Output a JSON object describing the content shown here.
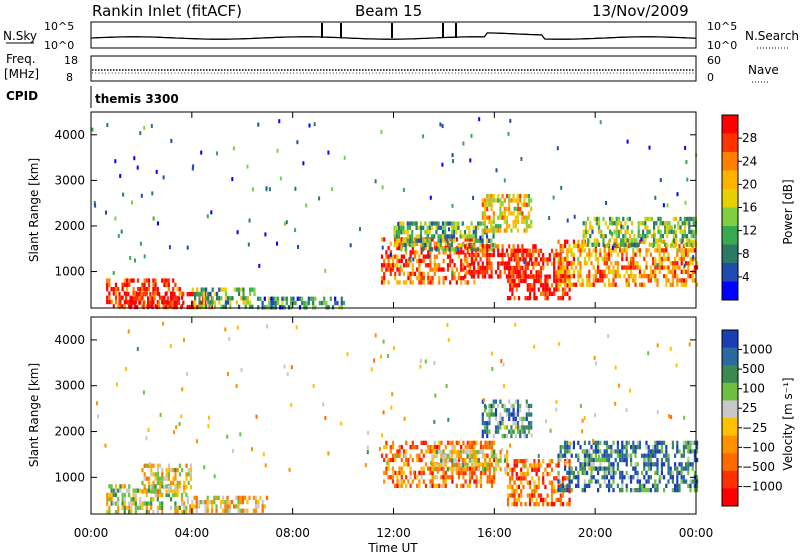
{
  "header": {
    "title": "Rankin Inlet (fitACF)",
    "beam": "Beam 15",
    "date": "13/Nov/2009"
  },
  "status_panels": {
    "nsky_label": "N.Sky",
    "nsky_ticks": [
      "10^5",
      "10^0"
    ],
    "nsearch_label": "N.Search",
    "nsearch_ticks": [
      "10^5",
      "10^0"
    ],
    "freq_label_1": "Freq.",
    "freq_label_2": "[MHz]",
    "freq_ticks": [
      "18",
      "8"
    ],
    "nave_label": "Nave",
    "nave_ticks": [
      "60",
      "0"
    ],
    "cpid_label": "CPID",
    "cpid_value": "themis 3300"
  },
  "chart_data": [
    {
      "type": "heatmap",
      "name": "power",
      "ylabel": "Slant Range [km]",
      "ylim": [
        200,
        4500
      ],
      "yticks": [
        1000,
        2000,
        3000,
        4000
      ],
      "xlim": [
        0,
        24
      ],
      "colorbar_label": "Power [dB]",
      "colorbar_ticks": [
        "28",
        "24",
        "20",
        "16",
        "12",
        "8",
        "4"
      ],
      "colorbar_colors": [
        "#ff0000",
        "#ff3300",
        "#ff8000",
        "#ffb300",
        "#e6d200",
        "#7fd040",
        "#3aaa50",
        "#2a7a66",
        "#224bb0",
        "#0000ff"
      ],
      "regions": [
        {
          "t0": 0.6,
          "t1": 3.6,
          "r0": 250,
          "r1": 850,
          "level": 0.88
        },
        {
          "t0": 1.0,
          "t1": 4.8,
          "r0": 250,
          "r1": 550,
          "level": 0.95
        },
        {
          "t0": 4.0,
          "t1": 6.5,
          "r0": 250,
          "r1": 650,
          "level": 0.4
        },
        {
          "t0": 6.5,
          "t1": 10.0,
          "r0": 250,
          "r1": 450,
          "level": 0.3
        },
        {
          "t0": 11.5,
          "t1": 15.2,
          "r0": 800,
          "r1": 1750,
          "level": 0.82
        },
        {
          "t0": 12.0,
          "t1": 16.0,
          "r0": 1500,
          "r1": 2100,
          "level": 0.38
        },
        {
          "t0": 14.8,
          "t1": 17.6,
          "r0": 900,
          "r1": 1600,
          "level": 0.9
        },
        {
          "t0": 15.5,
          "t1": 17.5,
          "r0": 1900,
          "r1": 2700,
          "level": 0.62
        },
        {
          "t0": 16.5,
          "t1": 19.0,
          "r0": 400,
          "r1": 1500,
          "level": 0.92
        },
        {
          "t0": 18.5,
          "t1": 24.0,
          "r0": 700,
          "r1": 1700,
          "level": 0.72
        },
        {
          "t0": 19.5,
          "t1": 24.0,
          "r0": 1600,
          "r1": 2200,
          "level": 0.42
        }
      ]
    },
    {
      "type": "heatmap",
      "name": "velocity",
      "ylabel": "Slant Range [km]",
      "ylim": [
        200,
        4500
      ],
      "yticks": [
        1000,
        2000,
        3000,
        4000
      ],
      "xlim": [
        0,
        24
      ],
      "xlabel": "Time UT",
      "xticks": [
        "00:00",
        "04:00",
        "08:00",
        "12:00",
        "16:00",
        "20:00",
        "00:00"
      ],
      "colorbar_label": "Velocity [m s⁻¹]",
      "colorbar_ticks": [
        "1000",
        "500",
        "100",
        "25",
        "−25",
        "−100",
        "−500",
        "−1000"
      ],
      "colorbar_colors": [
        "#1a3fb5",
        "#2a6aa0",
        "#3a8a50",
        "#6dc040",
        "#c8c8c8",
        "#ffc000",
        "#ff9000",
        "#ff6a00",
        "#ff3000",
        "#ff0000"
      ],
      "regions": [
        {
          "t0": 0.6,
          "t1": 3.8,
          "r0": 250,
          "r1": 850,
          "level": 0.55
        },
        {
          "t0": 2.0,
          "t1": 4.0,
          "r0": 700,
          "r1": 1300,
          "level": 0.5
        },
        {
          "t0": 3.8,
          "t1": 7.0,
          "r0": 250,
          "r1": 600,
          "level": 0.45
        },
        {
          "t0": 11.5,
          "t1": 16.0,
          "r0": 800,
          "r1": 1800,
          "level": 0.3
        },
        {
          "t0": 13.5,
          "t1": 16.5,
          "r0": 1200,
          "r1": 1600,
          "level": 0.5
        },
        {
          "t0": 15.5,
          "t1": 17.5,
          "r0": 1900,
          "r1": 2700,
          "level": 0.72
        },
        {
          "t0": 16.5,
          "t1": 19.0,
          "r0": 400,
          "r1": 1400,
          "level": 0.25
        },
        {
          "t0": 18.5,
          "t1": 24.0,
          "r0": 700,
          "r1": 1800,
          "level": 0.8
        }
      ]
    }
  ]
}
